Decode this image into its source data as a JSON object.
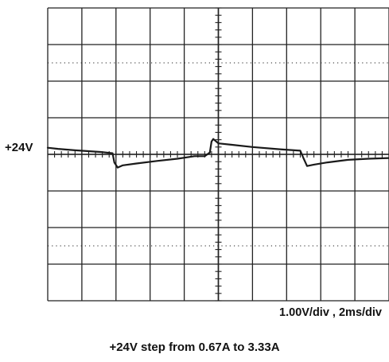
{
  "chart_data": {
    "type": "line",
    "reference_label": "+24V",
    "scale_label": "1.00V/div , 2ms/div",
    "caption": "+24V step from 0.67A to 3.33A",
    "x_divisions": 10,
    "y_divisions": 8,
    "xlim": [
      0,
      10
    ],
    "ylim": [
      -4,
      4
    ],
    "reference_level_div": 0,
    "series": [
      {
        "x": [
          0.0,
          0.3,
          0.8,
          1.6,
          1.9,
          1.95,
          2.05,
          2.2,
          2.6,
          3.2,
          3.8,
          4.3,
          4.6,
          4.75,
          4.8,
          4.85,
          5.0,
          5.4,
          6.0,
          6.8,
          7.4,
          7.5,
          7.6,
          7.8,
          8.2,
          8.8,
          9.4,
          10.0
        ],
        "y": [
          0.18,
          0.15,
          0.11,
          0.06,
          0.03,
          -0.22,
          -0.36,
          -0.3,
          -0.25,
          -0.18,
          -0.12,
          -0.05,
          -0.05,
          0.05,
          0.35,
          0.42,
          0.3,
          0.26,
          0.2,
          0.14,
          0.1,
          -0.12,
          -0.32,
          -0.28,
          -0.22,
          -0.15,
          -0.12,
          -0.1
        ]
      }
    ]
  }
}
